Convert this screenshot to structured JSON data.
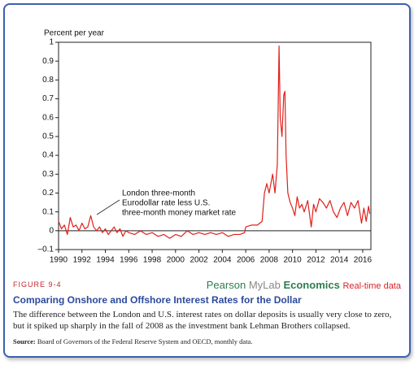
{
  "chart_data": {
    "type": "line",
    "y_label": "Percent per year",
    "annotation": [
      "London three-month",
      "Eurodollar rate less U.S.",
      "three-month money market rate"
    ],
    "figure_label": "FIGURE 9-4",
    "brand": [
      "Pearson",
      "MyLab",
      "Economics"
    ],
    "brand_tag": "Real-time data",
    "title": "Comparing Onshore and Offshore Interest Rates for the Dollar",
    "caption": "The difference between the London and U.S. interest rates on dollar deposits is usually very close to zero, but it spiked up sharply in the fall of 2008 as the investment bank Lehman Brothers collapsed.",
    "source_label": "Source:",
    "source": "Board of Governors of the Federal Reserve System and OECD, monthly data.",
    "xlim": [
      1990,
      2016.7
    ],
    "xticks": [
      1990,
      1992,
      1994,
      1996,
      1998,
      2000,
      2002,
      2004,
      2006,
      2008,
      2010,
      2012,
      2014,
      2016
    ],
    "ylim": [
      -0.1,
      1
    ],
    "yticks": [
      {
        "value": -0.1,
        "label": "–0.1"
      },
      0,
      0.1,
      0.2,
      0.3,
      0.4,
      0.5,
      0.6,
      0.7,
      0.8,
      0.9,
      1
    ],
    "x": [
      1990.0,
      1990.25,
      1990.5,
      1990.75,
      1991.0,
      1991.25,
      1991.5,
      1991.75,
      1992.0,
      1992.25,
      1992.5,
      1992.75,
      1993.0,
      1993.25,
      1993.5,
      1993.75,
      1994.0,
      1994.25,
      1994.5,
      1994.75,
      1995.0,
      1995.25,
      1995.5,
      1995.75,
      1996.0,
      1996.5,
      1997.0,
      1997.5,
      1998.0,
      1998.5,
      1999.0,
      1999.5,
      2000.0,
      2000.5,
      2001.0,
      2001.5,
      2002.0,
      2002.5,
      2003.0,
      2003.5,
      2004.0,
      2004.5,
      2005.0,
      2005.5,
      2005.9,
      2006.0,
      2006.5,
      2007.0,
      2007.4,
      2007.6,
      2007.8,
      2008.0,
      2008.3,
      2008.5,
      2008.7,
      2008.85,
      2008.95,
      2009.1,
      2009.25,
      2009.35,
      2009.45,
      2009.6,
      2009.8,
      2010.0,
      2010.2,
      2010.4,
      2010.6,
      2010.8,
      2011.0,
      2011.3,
      2011.6,
      2011.8,
      2012.0,
      2012.3,
      2012.6,
      2012.9,
      2013.2,
      2013.5,
      2013.8,
      2014.1,
      2014.4,
      2014.7,
      2015.0,
      2015.3,
      2015.6,
      2015.9,
      2016.1,
      2016.3,
      2016.5,
      2016.6
    ],
    "series": [
      {
        "color": "#e0201b",
        "values": [
          0.05,
          0.01,
          0.03,
          -0.02,
          0.07,
          0.02,
          0.03,
          0.0,
          0.04,
          0.01,
          0.02,
          0.08,
          0.02,
          0.0,
          0.02,
          -0.01,
          0.01,
          -0.02,
          0.0,
          0.02,
          -0.01,
          0.01,
          -0.03,
          0.0,
          -0.01,
          -0.02,
          0.0,
          -0.02,
          -0.01,
          -0.03,
          -0.02,
          -0.04,
          -0.02,
          -0.03,
          0.0,
          -0.02,
          -0.01,
          -0.02,
          -0.01,
          -0.02,
          -0.01,
          -0.03,
          -0.02,
          -0.02,
          -0.01,
          0.02,
          0.03,
          0.03,
          0.05,
          0.2,
          0.25,
          0.2,
          0.3,
          0.2,
          0.35,
          0.98,
          0.6,
          0.5,
          0.72,
          0.74,
          0.4,
          0.2,
          0.15,
          0.12,
          0.08,
          0.18,
          0.12,
          0.14,
          0.1,
          0.16,
          0.02,
          0.14,
          0.1,
          0.17,
          0.15,
          0.12,
          0.16,
          0.1,
          0.07,
          0.12,
          0.15,
          0.08,
          0.15,
          0.12,
          0.16,
          0.04,
          0.12,
          0.05,
          0.13,
          0.09
        ]
      }
    ]
  }
}
